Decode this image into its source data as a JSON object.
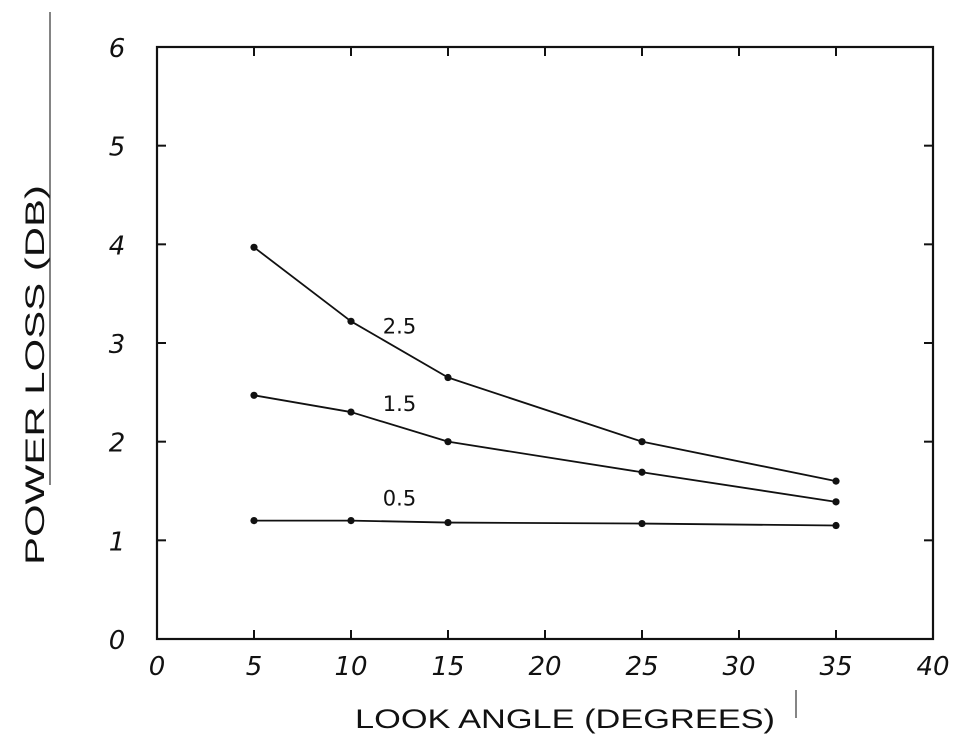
{
  "chart_data": {
    "type": "line",
    "xlabel": "LOOK ANGLE (DEGREES)",
    "ylabel": "POWER LOSS (DB)",
    "xlim": [
      0,
      40
    ],
    "ylim": [
      0,
      6
    ],
    "x_ticks": [
      0,
      5,
      10,
      15,
      20,
      25,
      30,
      35,
      40
    ],
    "y_ticks": [
      0,
      1,
      2,
      3,
      4,
      5,
      6
    ],
    "x_tick_labels": [
      "0",
      "5",
      "10",
      "15",
      "20",
      "25",
      "30",
      "35",
      "40"
    ],
    "y_tick_labels": [
      "0",
      "1",
      "2",
      "3",
      "4",
      "5",
      "6"
    ],
    "grid": false,
    "series": [
      {
        "name": "2.5",
        "x": [
          5,
          10,
          15,
          25,
          35
        ],
        "values": [
          3.97,
          3.22,
          2.65,
          2.0,
          1.6
        ]
      },
      {
        "name": "1.5",
        "x": [
          5,
          10,
          15,
          25,
          35
        ],
        "values": [
          2.47,
          2.3,
          2.0,
          1.69,
          1.39
        ]
      },
      {
        "name": "0.5",
        "x": [
          5,
          10,
          15,
          25,
          35
        ],
        "values": [
          1.2,
          1.2,
          1.18,
          1.17,
          1.15
        ]
      }
    ]
  }
}
